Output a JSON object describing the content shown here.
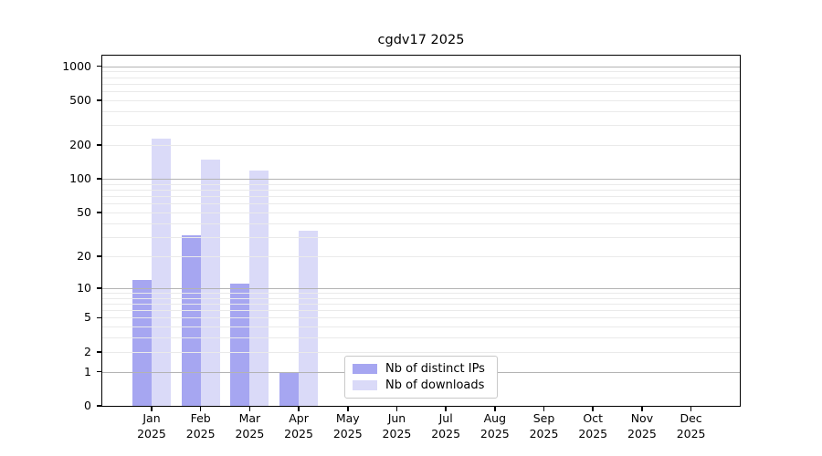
{
  "chart_data": {
    "type": "bar",
    "title": "cgdv17 2025",
    "categories": [
      "Jan",
      "Feb",
      "Mar",
      "Apr",
      "May",
      "Jun",
      "Jul",
      "Aug",
      "Sep",
      "Oct",
      "Nov",
      "Dec"
    ],
    "year": "2025",
    "series": [
      {
        "name": "Nb of distinct IPs",
        "color": "#a6a6f1",
        "values": [
          12,
          31,
          11,
          1,
          0,
          0,
          0,
          0,
          0,
          0,
          0,
          0
        ]
      },
      {
        "name": "Nb of downloads",
        "color": "#dadaf8",
        "values": [
          228,
          150,
          120,
          34,
          0,
          0,
          0,
          0,
          0,
          0,
          0,
          0
        ]
      }
    ],
    "yticks": [
      0,
      1,
      2,
      5,
      10,
      20,
      50,
      100,
      200,
      500,
      1000
    ],
    "scale": "log1p",
    "ylim": [
      0,
      1240
    ],
    "xlabel": "",
    "ylabel": "",
    "grid": "on",
    "grid_major_color": "#b3b3b3",
    "grid_minor_color": "#eaeaea",
    "legend_position": "lower-center",
    "axis_color": "#000000",
    "background_color": "#ffffff"
  }
}
